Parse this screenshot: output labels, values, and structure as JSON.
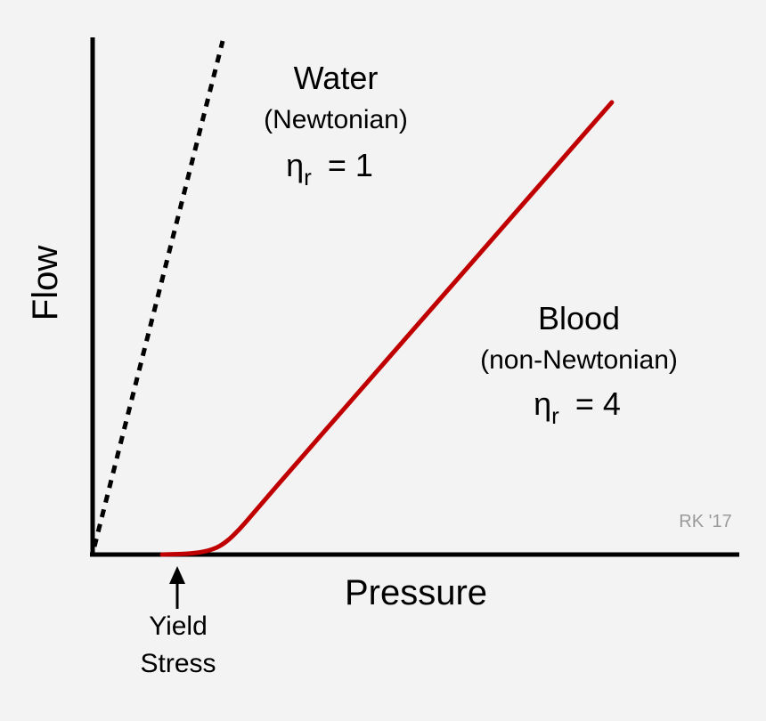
{
  "chart_data": {
    "type": "line",
    "xlabel": "Pressure",
    "ylabel": "Flow",
    "xlim": [
      0,
      10
    ],
    "ylim": [
      0,
      10
    ],
    "grid": false,
    "series": [
      {
        "name": "Water",
        "subtitle": "(Newtonian)",
        "eta_symbol": "η",
        "eta_subscript": "r",
        "eta_value": "= 1",
        "style": "dashed",
        "color": "#000000",
        "x": [
          0,
          2.0
        ],
        "y": [
          0,
          10.0
        ]
      },
      {
        "name": "Blood",
        "subtitle": "(non-Newtonian)",
        "eta_symbol": "η",
        "eta_subscript": "r",
        "eta_value": "= 4",
        "style": "solid",
        "color": "#c00000",
        "x": [
          1.0,
          1.5,
          1.8,
          2.0,
          2.2,
          2.4,
          2.7,
          3.0,
          4.0,
          5.0,
          6.0,
          7.0,
          8.0,
          9.0
        ],
        "y": [
          0.0,
          0.02,
          0.1,
          0.25,
          0.5,
          0.8,
          1.25,
          1.7,
          3.18,
          4.66,
          6.14,
          7.62,
          9.1,
          8.8
        ]
      }
    ],
    "annotations": [
      {
        "text_line1": "Yield",
        "text_line2": "Stress",
        "x": 1.3
      }
    ],
    "credit": "RK '17"
  }
}
